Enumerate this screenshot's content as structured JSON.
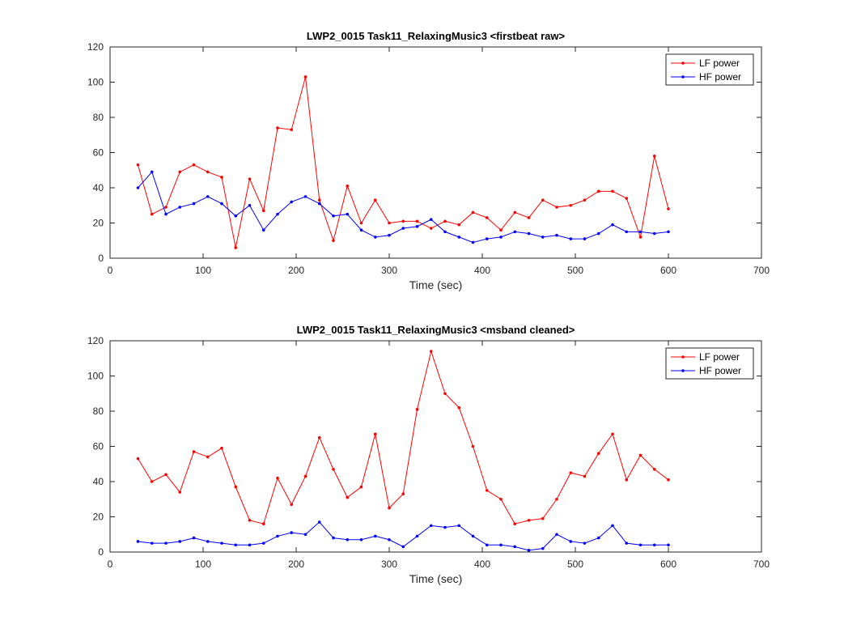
{
  "colors": {
    "lf": "#ff0000",
    "hf": "#0000ff",
    "axis": "#262626"
  },
  "chart_data": [
    {
      "type": "line",
      "title": "LWP2_0015 Task11_RelaxingMusic3    <firstbeat raw>",
      "xlabel": "Time (sec)",
      "ylabel": "",
      "xlim": [
        0,
        700
      ],
      "ylim": [
        0,
        120
      ],
      "xticks": [
        "0",
        "100",
        "200",
        "300",
        "400",
        "500",
        "600",
        "700"
      ],
      "yticks": [
        "0",
        "20",
        "40",
        "60",
        "80",
        "100",
        "120"
      ],
      "legend_position": "top-right",
      "x": [
        30,
        45,
        60,
        75,
        90,
        105,
        120,
        135,
        150,
        165,
        180,
        195,
        210,
        225,
        240,
        255,
        270,
        285,
        300,
        315,
        330,
        345,
        360,
        375,
        390,
        405,
        420,
        435,
        450,
        465,
        480,
        495,
        510,
        525,
        540,
        555,
        570,
        585,
        600
      ],
      "series": [
        {
          "name": "LF power",
          "color": "#ff0000",
          "values": [
            53,
            25,
            29,
            49,
            53,
            49,
            46,
            6,
            45,
            27,
            74,
            73,
            103,
            33,
            10,
            41,
            20,
            33,
            20,
            21,
            21,
            17,
            21,
            19,
            26,
            23,
            16,
            26,
            23,
            33,
            29,
            30,
            33,
            38,
            38,
            34,
            12,
            58,
            28
          ]
        },
        {
          "name": "HF power",
          "color": "#0000ff",
          "values": [
            40,
            49,
            25,
            29,
            31,
            35,
            31,
            24,
            30,
            16,
            25,
            32,
            35,
            31,
            24,
            25,
            16,
            12,
            13,
            17,
            18,
            22,
            15,
            12,
            9,
            11,
            12,
            15,
            14,
            12,
            13,
            11,
            11,
            14,
            19,
            15,
            15,
            14,
            15
          ]
        }
      ]
    },
    {
      "type": "line",
      "title": "LWP2_0015 Task11_RelaxingMusic3    <msband cleaned>",
      "xlabel": "Time (sec)",
      "ylabel": "",
      "xlim": [
        0,
        700
      ],
      "ylim": [
        0,
        120
      ],
      "xticks": [
        "0",
        "100",
        "200",
        "300",
        "400",
        "500",
        "600",
        "700"
      ],
      "yticks": [
        "0",
        "20",
        "40",
        "60",
        "80",
        "100",
        "120"
      ],
      "legend_position": "top-right",
      "x": [
        30,
        45,
        60,
        75,
        90,
        105,
        120,
        135,
        150,
        165,
        180,
        195,
        210,
        225,
        240,
        255,
        270,
        285,
        300,
        315,
        330,
        345,
        360,
        375,
        390,
        405,
        420,
        435,
        450,
        465,
        480,
        495,
        510,
        525,
        540,
        555,
        570,
        585,
        600
      ],
      "series": [
        {
          "name": "LF power",
          "color": "#ff0000",
          "values": [
            53,
            40,
            44,
            34,
            57,
            54,
            59,
            37,
            18,
            16,
            42,
            27,
            43,
            65,
            47,
            31,
            37,
            67,
            25,
            33,
            81,
            114,
            90,
            82,
            60,
            35,
            30,
            16,
            18,
            19,
            30,
            45,
            43,
            56,
            67,
            41,
            55,
            47,
            41
          ]
        },
        {
          "name": "HF power",
          "color": "#0000ff",
          "values": [
            6,
            5,
            5,
            6,
            8,
            6,
            5,
            4,
            4,
            5,
            9,
            11,
            10,
            17,
            8,
            7,
            7,
            9,
            7,
            3,
            9,
            15,
            14,
            15,
            9,
            4,
            4,
            3,
            1,
            2,
            10,
            6,
            5,
            8,
            15,
            5,
            4,
            4,
            4
          ]
        }
      ]
    }
  ]
}
